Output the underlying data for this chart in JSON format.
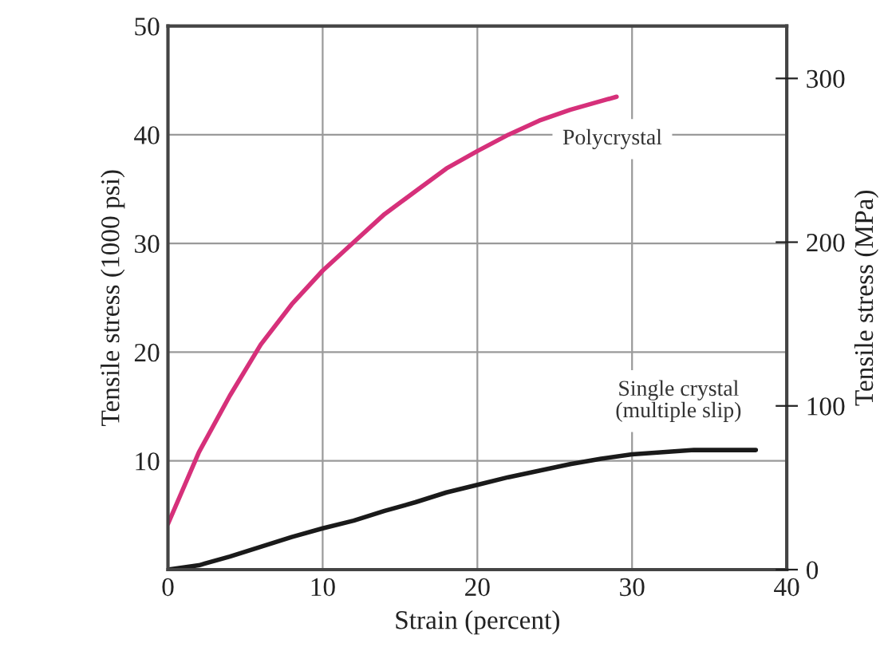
{
  "chart_data": {
    "type": "line",
    "xlabel": "Strain (percent)",
    "ylabel": "Tensile stress (1000 psi)",
    "y2label": "Tensile stress (MPa)",
    "xlim": [
      0,
      40
    ],
    "xticks": [
      0,
      10,
      20,
      30,
      40
    ],
    "ylim": [
      0,
      50
    ],
    "yticks": [
      {
        "value": 0,
        "label": null
      },
      10,
      20,
      30,
      40,
      50
    ],
    "y2lim": [
      0,
      332
    ],
    "y2ticks": [
      0,
      100,
      200,
      300
    ],
    "grid": true,
    "series": [
      {
        "name": "Polycrystal",
        "color": "#d6307a",
        "x": [
          0,
          2,
          4,
          6,
          8,
          10,
          12,
          14,
          16,
          18,
          20,
          22,
          24,
          26,
          28,
          29
        ],
        "values": [
          4.2,
          10.8,
          16,
          20.7,
          24.4,
          27.5,
          30.1,
          32.7,
          34.8,
          36.9,
          38.5,
          40,
          41.3,
          42.3,
          43.1,
          43.5
        ]
      },
      {
        "name": "Single crystal\n(multiple slip)",
        "color": "#1a1a1a",
        "x": [
          0,
          2,
          4,
          6,
          8,
          10,
          12,
          14,
          16,
          18,
          20,
          22,
          24,
          26,
          28,
          30,
          32,
          34,
          36,
          38
        ],
        "values": [
          0,
          0.4,
          1.2,
          2.1,
          3,
          3.8,
          4.5,
          5.4,
          6.2,
          7.1,
          7.8,
          8.5,
          9.1,
          9.7,
          10.2,
          10.6,
          10.8,
          11,
          11,
          11
        ]
      }
    ]
  }
}
